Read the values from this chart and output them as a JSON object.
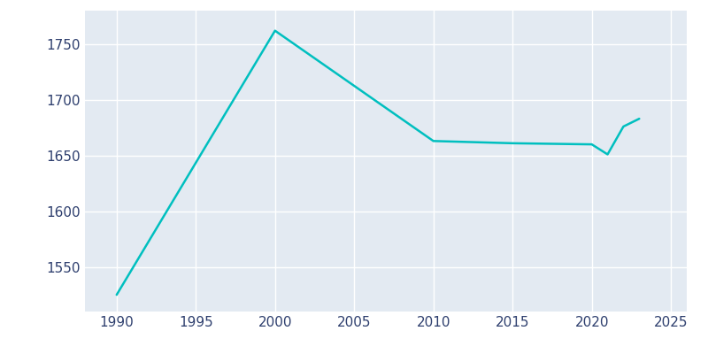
{
  "years": [
    1990,
    2000,
    2010,
    2015,
    2020,
    2021,
    2022,
    2023
  ],
  "population": [
    1525,
    1762,
    1663,
    1661,
    1660,
    1651,
    1676,
    1683
  ],
  "line_color": "#00BFBF",
  "background_color": "#E3EAF2",
  "figure_color": "#FFFFFF",
  "grid_color": "#FFFFFF",
  "text_color": "#2E3F6E",
  "xlim": [
    1988,
    2026
  ],
  "ylim": [
    1510,
    1780
  ],
  "xticks": [
    1990,
    1995,
    2000,
    2005,
    2010,
    2015,
    2020,
    2025
  ],
  "yticks": [
    1550,
    1600,
    1650,
    1700,
    1750
  ],
  "line_width": 1.8,
  "figsize": [
    8.0,
    4.0
  ],
  "dpi": 100
}
